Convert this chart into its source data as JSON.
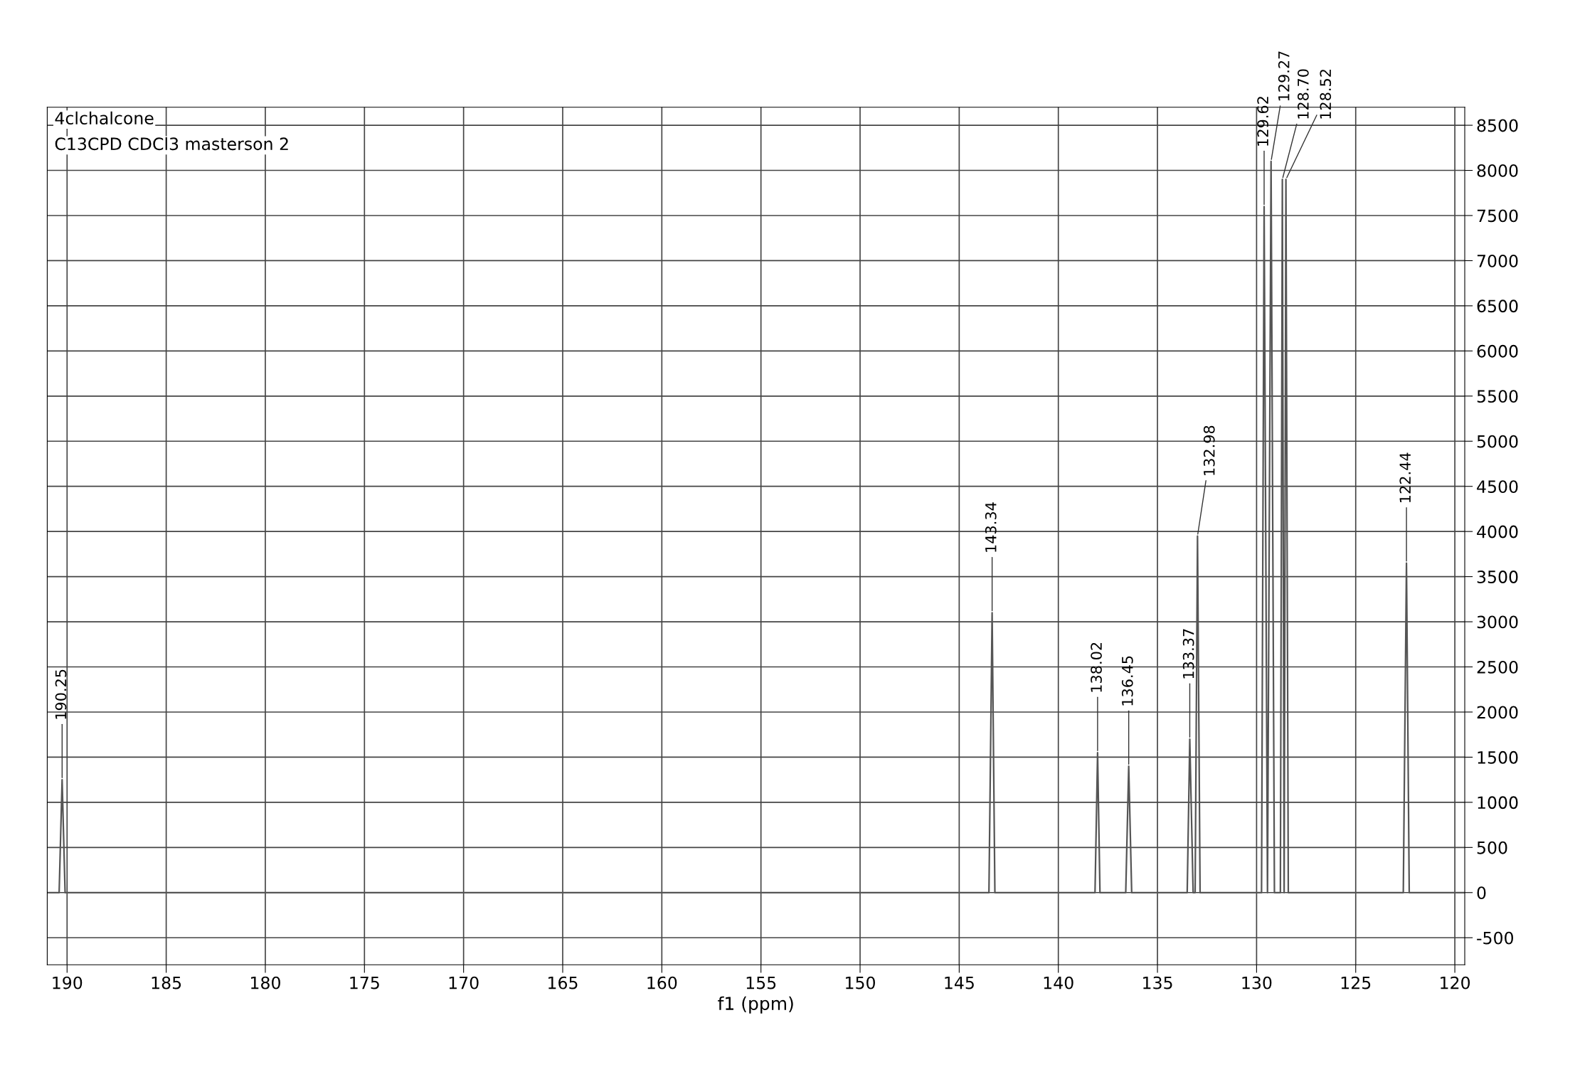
{
  "chart_data": {
    "type": "line",
    "title": "4clchalcone",
    "subtitle": "C13CPD CDCl3 masterson 2",
    "xlabel": "f1 (ppm)",
    "x": [
      191,
      190.4,
      190.25,
      190.1,
      143.5,
      143.34,
      143.2,
      138.15,
      138.02,
      137.9,
      136.6,
      136.45,
      136.3,
      133.5,
      133.37,
      133.2,
      133.1,
      132.98,
      132.85,
      129.75,
      129.62,
      129.45,
      129.27,
      129.1,
      128.8,
      128.7,
      128.61,
      128.52,
      128.4,
      122.6,
      122.44,
      122.3,
      119.5
    ],
    "series": [
      {
        "color": "#555555",
        "values": [
          0,
          0,
          1250,
          0,
          0,
          3100,
          0,
          0,
          1550,
          0,
          0,
          1400,
          0,
          0,
          1700,
          0,
          0,
          3950,
          0,
          0,
          7600,
          0,
          8100,
          0,
          0,
          7900,
          0,
          7900,
          0,
          0,
          3650,
          0,
          0
        ]
      }
    ],
    "annotations": [
      {
        "text": "190.25",
        "x": 190.25,
        "y": 1250
      },
      {
        "text": "143.34",
        "x": 143.34,
        "y": 3100
      },
      {
        "text": "138.02",
        "x": 138.02,
        "y": 1550
      },
      {
        "text": "136.45",
        "x": 136.45,
        "y": 1400
      },
      {
        "text": "133.37",
        "x": 133.37,
        "y": 1700
      },
      {
        "text": "132.98",
        "x": 132.98,
        "y": 3950
      },
      {
        "text": "129.62",
        "x": 129.62,
        "y": 7600
      },
      {
        "text": "129.27",
        "x": 129.27,
        "y": 8100
      },
      {
        "text": "128.70",
        "x": 128.7,
        "y": 7900
      },
      {
        "text": "128.52",
        "x": 128.52,
        "y": 7900
      },
      {
        "text": "122.44",
        "x": 122.44,
        "y": 3650
      }
    ],
    "xlim": [
      191,
      119.5
    ],
    "ylim": [
      -800,
      8700
    ],
    "xticks": [
      190,
      185,
      180,
      175,
      170,
      165,
      160,
      155,
      150,
      145,
      140,
      135,
      130,
      125,
      120
    ],
    "yticks": [
      -500,
      0,
      500,
      1000,
      1500,
      2000,
      2500,
      3000,
      3500,
      4000,
      4500,
      5000,
      5500,
      6000,
      6500,
      7000,
      7500,
      8000,
      8500
    ],
    "grid": true,
    "legend": false,
    "marker": "none",
    "line_style": "solid"
  }
}
